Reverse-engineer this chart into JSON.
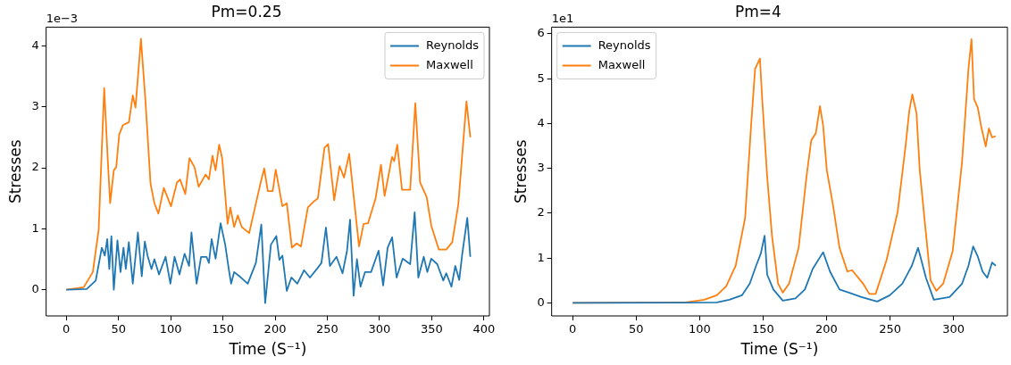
{
  "chart_data": [
    {
      "type": "line",
      "title": "Pm=0.25",
      "xlabel": "Time (S⁻¹)",
      "ylabel": "Stresses",
      "annotations": [
        "1e−3"
      ],
      "xlim": [
        -19.3,
        405.3
      ],
      "xticks": [
        0,
        50,
        100,
        150,
        200,
        250,
        300,
        350,
        400
      ],
      "ylim": [
        -0.43,
        4.31
      ],
      "yticks": [
        0,
        1,
        2,
        3,
        4
      ],
      "legend": "top right",
      "grid": false,
      "series": [
        {
          "name": "Reynolds",
          "color": "#1f77b4",
          "x": [
            0,
            19.6,
            28.2,
            34,
            36.9,
            39.2,
            41.2,
            43.2,
            45.5,
            49,
            51.9,
            54.8,
            57,
            59.9,
            63.7,
            68.6,
            72.3,
            75.2,
            77.8,
            81.6,
            84.4,
            88.8,
            95.1,
            99.7,
            103.7,
            108.4,
            113.3,
            117.6,
            119.9,
            124.8,
            129.1,
            134.3,
            136.6,
            139.2,
            143,
            147.8,
            152.2,
            155.6,
            157.9,
            160.8,
            166.6,
            173.8,
            181.6,
            186.8,
            190.5,
            196,
            201.2,
            204.1,
            207,
            211.2,
            215.6,
            221.3,
            227.7,
            233.4,
            240,
            244.4,
            248.7,
            252.5,
            258.8,
            264.6,
            268.9,
            271.8,
            275.2,
            278.4,
            281.8,
            286.2,
            291.9,
            299.1,
            303.5,
            307.8,
            312.1,
            316.4,
            322.2,
            329.4,
            333.7,
            337.2,
            342.4,
            345.8,
            349.6,
            355.3,
            361.1,
            364,
            368.9,
            372.6,
            376.4,
            379.3,
            384.1,
            387
          ],
          "values": [
            0,
            0.01,
            0.15,
            0.69,
            0.56,
            0.83,
            0.34,
            0.88,
            0,
            0.81,
            0.29,
            0.69,
            0.34,
            0.78,
            0.1,
            0.94,
            0.22,
            0.79,
            0.56,
            0.34,
            0.5,
            0.25,
            0.54,
            0.1,
            0.54,
            0.25,
            0.59,
            0.39,
            0.94,
            0.1,
            0.54,
            0.54,
            0.44,
            0.83,
            0.51,
            1.09,
            0.74,
            0.34,
            0.1,
            0.29,
            0.21,
            0.1,
            0.44,
            1.07,
            -0.22,
            0.74,
            0.88,
            0.49,
            0.56,
            -0.02,
            0.2,
            0.1,
            0.32,
            0.2,
            0.34,
            0.44,
            1.02,
            0.39,
            0.54,
            0.27,
            0.64,
            1.15,
            -0.1,
            0.5,
            0.05,
            0.29,
            0.29,
            0.64,
            0.07,
            0.69,
            0.86,
            0.2,
            0.51,
            0.42,
            1.27,
            0.2,
            0.54,
            0.29,
            0.51,
            0.42,
            0.15,
            0.27,
            0.05,
            0.39,
            0.16,
            0.59,
            1.18,
            0.54
          ]
        },
        {
          "name": "Maxwell",
          "color": "#ff7f0e",
          "x": [
            0,
            16.7,
            25.4,
            31,
            36.3,
            39.8,
            42,
            45.5,
            47.8,
            50.7,
            54.2,
            60,
            63.7,
            66.3,
            71.5,
            75.8,
            80.7,
            84.4,
            88.2,
            93.4,
            100.3,
            106,
            109,
            114,
            118,
            122.8,
            126.8,
            133.4,
            136.6,
            140,
            143,
            146.4,
            149.3,
            154.5,
            157.1,
            160.8,
            164.3,
            168,
            175.2,
            181,
            186.2,
            189.6,
            193,
            197.7,
            200.6,
            207,
            211.2,
            216.1,
            220.7,
            224.8,
            231.4,
            237.2,
            241,
            247.3,
            250.8,
            256.6,
            261.8,
            266,
            271,
            280.4,
            284.8,
            289,
            296.3,
            301.4,
            304.9,
            312,
            314.1,
            317,
            321.6,
            329.4,
            334.3,
            338.9,
            345.2,
            349.6,
            356.8,
            364,
            369.7,
            375.5,
            383.3,
            387
          ],
          "values": [
            0,
            0.04,
            0.29,
            0.98,
            3.31,
            2.11,
            1.42,
            1.96,
            2.01,
            2.55,
            2.7,
            2.75,
            3.19,
            2.99,
            4.12,
            3.11,
            1.74,
            1.42,
            1.25,
            1.67,
            1.37,
            1.76,
            1.81,
            1.57,
            2.16,
            2.01,
            1.69,
            1.89,
            1.81,
            2.2,
            1.96,
            2.38,
            2.16,
            1.08,
            1.35,
            1.03,
            1.22,
            1.03,
            0.93,
            1.37,
            1.76,
            1.99,
            1.62,
            1.62,
            1.97,
            1.37,
            1.42,
            0.69,
            0.76,
            0.71,
            1.35,
            1.45,
            1.5,
            2.33,
            2.39,
            1.47,
            2.03,
            1.84,
            2.23,
            0.71,
            1.08,
            1.09,
            1.5,
            2.05,
            1.54,
            2.18,
            2.11,
            2.38,
            1.64,
            1.64,
            3.06,
            1.76,
            1.52,
            1.05,
            0.66,
            0.66,
            0.78,
            1.4,
            3.09,
            2.5
          ]
        }
      ]
    },
    {
      "type": "line",
      "title": "Pm=4",
      "xlabel": "Time (S⁻¹)",
      "ylabel": "Stresses",
      "annotations": [
        "1e1"
      ],
      "xlim": [
        -16.6,
        342.5
      ],
      "xticks": [
        0,
        50,
        100,
        150,
        200,
        250,
        300
      ],
      "ylim": [
        -0.29,
        6.15
      ],
      "yticks": [
        0,
        1,
        2,
        3,
        4,
        5,
        6
      ],
      "legend": "top left",
      "grid": false,
      "series": [
        {
          "name": "Reynolds",
          "color": "#1f77b4",
          "x": [
            0,
            113.5,
            123.4,
            133.3,
            139.5,
            144.5,
            148.2,
            151.2,
            153.2,
            158.1,
            165.5,
            175.5,
            182.9,
            189.1,
            197.3,
            202.7,
            210.2,
            217.6,
            227.5,
            239.9,
            249.8,
            259.7,
            267.2,
            272.1,
            278.3,
            284.5,
            296.9,
            306.8,
            311.8,
            315.5,
            319.2,
            322.9,
            326.6,
            330.4,
            333.3
          ],
          "values": [
            0,
            0.01,
            0.07,
            0.17,
            0.43,
            0.83,
            1.1,
            1.5,
            0.63,
            0.3,
            0.05,
            0.1,
            0.3,
            0.76,
            1.13,
            0.7,
            0.3,
            0.23,
            0.13,
            0.03,
            0.17,
            0.43,
            0.83,
            1.23,
            0.56,
            0.07,
            0.13,
            0.43,
            0.83,
            1.26,
            1.03,
            0.7,
            0.56,
            0.9,
            0.83
          ]
        },
        {
          "name": "Maxwell",
          "color": "#ff7f0e",
          "x": [
            0,
            88.7,
            103.6,
            113.5,
            120.9,
            128.4,
            135.8,
            140.7,
            143.7,
            147.5,
            149.4,
            153.2,
            157,
            161.8,
            165.5,
            170.5,
            178,
            184.2,
            187.9,
            191.6,
            194.8,
            197.3,
            200.2,
            205.2,
            210.2,
            216.4,
            220.1,
            228.8,
            233.7,
            238.7,
            247.3,
            256,
            262.2,
            265.2,
            267.6,
            270.9,
            273.4,
            277.1,
            282,
            286.5,
            291.9,
            299.4,
            306.8,
            311.8,
            314.2,
            316.2,
            319.2,
            321.7,
            325.4,
            327.9,
            330.4,
            333.3
          ],
          "values": [
            0,
            0.01,
            0.07,
            0.17,
            0.37,
            0.83,
            1.89,
            4.02,
            5.22,
            5.45,
            4.49,
            2.82,
            1.5,
            0.43,
            0.23,
            0.43,
            1.23,
            2.82,
            3.62,
            3.79,
            4.39,
            3.95,
            2.96,
            2.16,
            1.23,
            0.7,
            0.73,
            0.43,
            0.2,
            0.2,
            0.96,
            2.03,
            3.49,
            4.29,
            4.65,
            4.22,
            2.96,
            1.89,
            0.5,
            0.27,
            0.43,
            1.16,
            3.16,
            5.22,
            5.88,
            4.55,
            4.35,
            3.95,
            3.49,
            3.89,
            3.69,
            3.72
          ]
        }
      ]
    }
  ]
}
